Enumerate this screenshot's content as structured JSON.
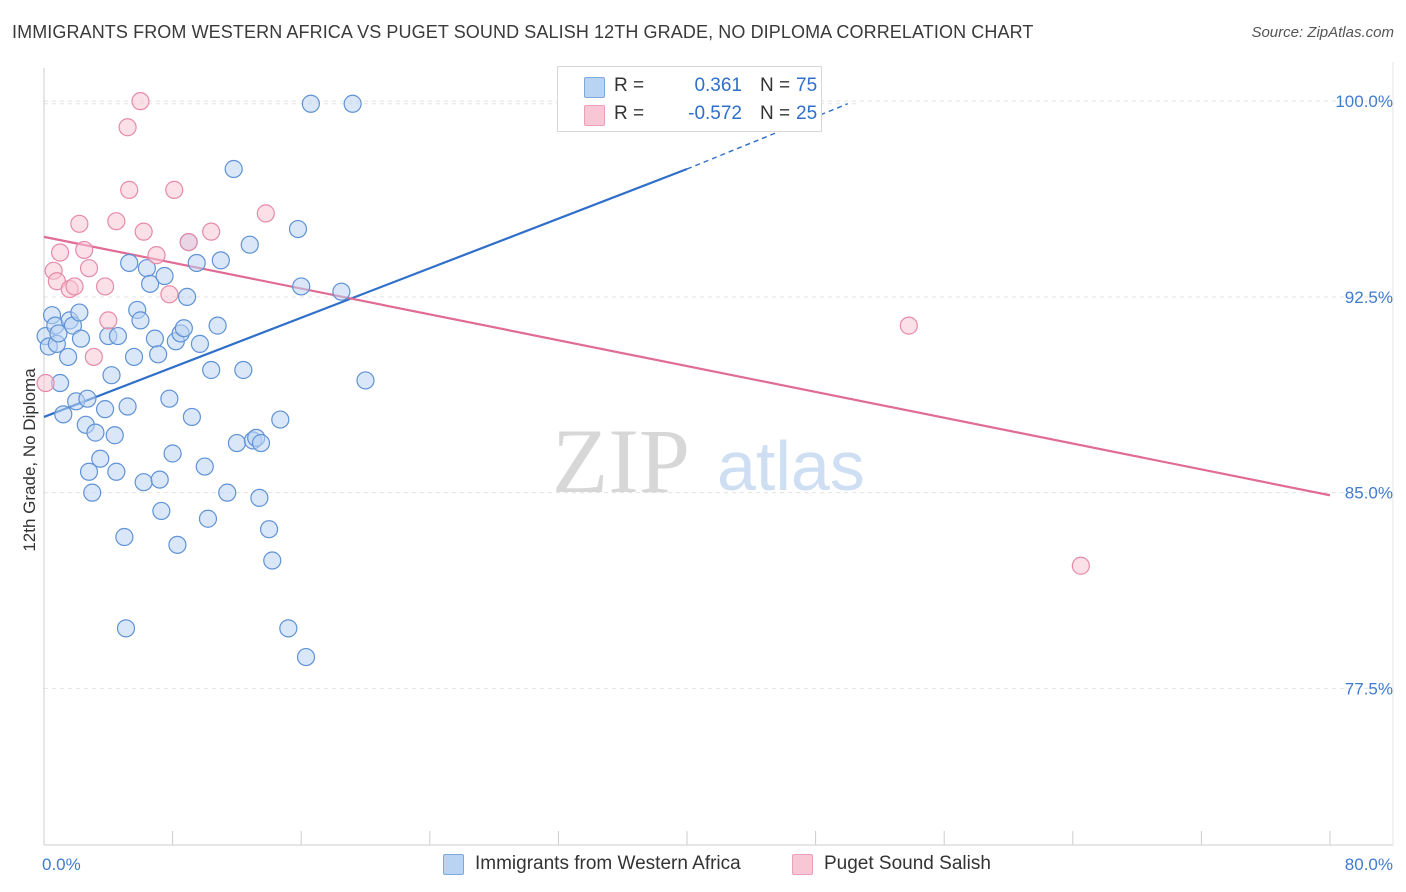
{
  "title": "IMMIGRANTS FROM WESTERN AFRICA VS PUGET SOUND SALISH 12TH GRADE, NO DIPLOMA CORRELATION CHART",
  "source": "Source: ZipAtlas.com",
  "watermark": {
    "zip": "ZIP",
    "atlas": "atlas"
  },
  "colors": {
    "blue": "#2f6fc9",
    "blue_fill": "#b9d3f2",
    "pink": "#e06b94",
    "pink_fill": "#f7c7d6",
    "grid": "#e3e3e3",
    "tick_text": "#3f7cd0"
  },
  "legend": {
    "rows": [
      {
        "r_label": "R =",
        "r_value": "0.361",
        "n_label": "N =",
        "n_value": "75"
      },
      {
        "r_label": "R =",
        "r_value": "-0.572",
        "n_label": "N =",
        "n_value": "25"
      }
    ]
  },
  "chart_data": {
    "type": "scatter",
    "xlabel": "",
    "ylabel": "12th Grade, No Diploma",
    "xlim": [
      0,
      80
    ],
    "ylim": [
      71.5,
      101.5
    ],
    "x_tick_labels": [
      "0.0%",
      "80.0%"
    ],
    "y_ticks": [
      77.5,
      85.0,
      92.5,
      100.0
    ],
    "y_tick_labels": [
      "77.5%",
      "85.0%",
      "92.5%",
      "100.0%"
    ],
    "grid": true,
    "series": [
      {
        "name": "Immigrants from Western Africa",
        "color": "blue",
        "r": 0.361,
        "n": 75,
        "trend": {
          "x0": 0.0,
          "y0": 87.9,
          "x1": 40.0,
          "y1": 97.4,
          "dashed_to_x": 50.0,
          "dashed_to_y": 99.9
        },
        "points": [
          [
            0.1,
            91.0
          ],
          [
            0.3,
            90.6
          ],
          [
            0.5,
            91.8
          ],
          [
            0.7,
            91.4
          ],
          [
            0.8,
            90.7
          ],
          [
            0.9,
            91.1
          ],
          [
            1.0,
            89.2
          ],
          [
            1.2,
            88.0
          ],
          [
            1.5,
            90.2
          ],
          [
            1.6,
            91.6
          ],
          [
            1.8,
            91.4
          ],
          [
            2.0,
            88.5
          ],
          [
            2.3,
            90.9
          ],
          [
            2.6,
            87.6
          ],
          [
            2.7,
            88.6
          ],
          [
            2.8,
            85.8
          ],
          [
            3.0,
            85.0
          ],
          [
            3.2,
            87.3
          ],
          [
            3.5,
            86.3
          ],
          [
            3.8,
            88.2
          ],
          [
            4.0,
            91.0
          ],
          [
            4.2,
            89.5
          ],
          [
            4.4,
            87.2
          ],
          [
            4.5,
            85.8
          ],
          [
            4.6,
            91.0
          ],
          [
            5.0,
            83.3
          ],
          [
            5.1,
            79.8
          ],
          [
            5.2,
            88.3
          ],
          [
            5.3,
            93.8
          ],
          [
            5.6,
            90.2
          ],
          [
            5.8,
            92.0
          ],
          [
            6.0,
            91.6
          ],
          [
            6.2,
            85.4
          ],
          [
            6.4,
            93.6
          ],
          [
            6.6,
            93.0
          ],
          [
            6.9,
            90.9
          ],
          [
            7.1,
            90.3
          ],
          [
            7.3,
            84.3
          ],
          [
            7.5,
            93.3
          ],
          [
            7.8,
            88.6
          ],
          [
            8.0,
            86.5
          ],
          [
            8.2,
            90.8
          ],
          [
            8.5,
            91.1
          ],
          [
            8.7,
            91.3
          ],
          [
            8.9,
            92.5
          ],
          [
            9.0,
            94.6
          ],
          [
            9.2,
            87.9
          ],
          [
            9.5,
            93.8
          ],
          [
            9.7,
            90.7
          ],
          [
            10.0,
            86.0
          ],
          [
            10.2,
            84.0
          ],
          [
            10.4,
            89.7
          ],
          [
            10.8,
            91.4
          ],
          [
            11.0,
            93.9
          ],
          [
            11.4,
            85.0
          ],
          [
            11.8,
            97.4
          ],
          [
            12.0,
            86.9
          ],
          [
            12.4,
            89.7
          ],
          [
            12.8,
            94.5
          ],
          [
            13.0,
            87.0
          ],
          [
            13.2,
            87.1
          ],
          [
            13.4,
            84.8
          ],
          [
            14.0,
            83.6
          ],
          [
            14.2,
            82.4
          ],
          [
            14.7,
            87.8
          ],
          [
            15.2,
            79.8
          ],
          [
            15.8,
            95.1
          ],
          [
            16.3,
            78.7
          ],
          [
            18.5,
            92.7
          ],
          [
            20.0,
            89.3
          ],
          [
            16.0,
            92.9
          ],
          [
            13.5,
            86.9
          ],
          [
            8.3,
            83.0
          ],
          [
            7.2,
            85.5
          ],
          [
            2.2,
            91.9
          ]
        ],
        "top_points": [
          [
            16.6,
            99.9
          ],
          [
            19.2,
            99.9
          ]
        ]
      },
      {
        "name": "Puget Sound Salish",
        "color": "pink",
        "r": -0.572,
        "n": 25,
        "trend": {
          "x0": 0.0,
          "y0": 94.8,
          "x1": 80.0,
          "y1": 84.9
        },
        "points": [
          [
            0.1,
            89.2
          ],
          [
            0.6,
            93.5
          ],
          [
            0.8,
            93.1
          ],
          [
            1.0,
            94.2
          ],
          [
            1.6,
            92.8
          ],
          [
            1.9,
            92.9
          ],
          [
            2.2,
            95.3
          ],
          [
            2.5,
            94.3
          ],
          [
            2.8,
            93.6
          ],
          [
            3.1,
            90.2
          ],
          [
            3.8,
            92.9
          ],
          [
            4.0,
            91.6
          ],
          [
            4.5,
            95.4
          ],
          [
            5.2,
            99.0
          ],
          [
            5.3,
            96.6
          ],
          [
            6.2,
            95.0
          ],
          [
            7.0,
            94.1
          ],
          [
            7.8,
            92.6
          ],
          [
            8.1,
            96.6
          ],
          [
            9.0,
            94.6
          ],
          [
            10.4,
            95.0
          ],
          [
            13.8,
            95.7
          ],
          [
            53.8,
            91.4
          ],
          [
            64.5,
            82.2
          ],
          [
            6.0,
            100.0
          ]
        ]
      }
    ]
  },
  "bottom_legend": {
    "items": [
      {
        "label": "Immigrants from Western Africa",
        "color": "blue"
      },
      {
        "label": "Puget Sound Salish",
        "color": "pink"
      }
    ]
  }
}
